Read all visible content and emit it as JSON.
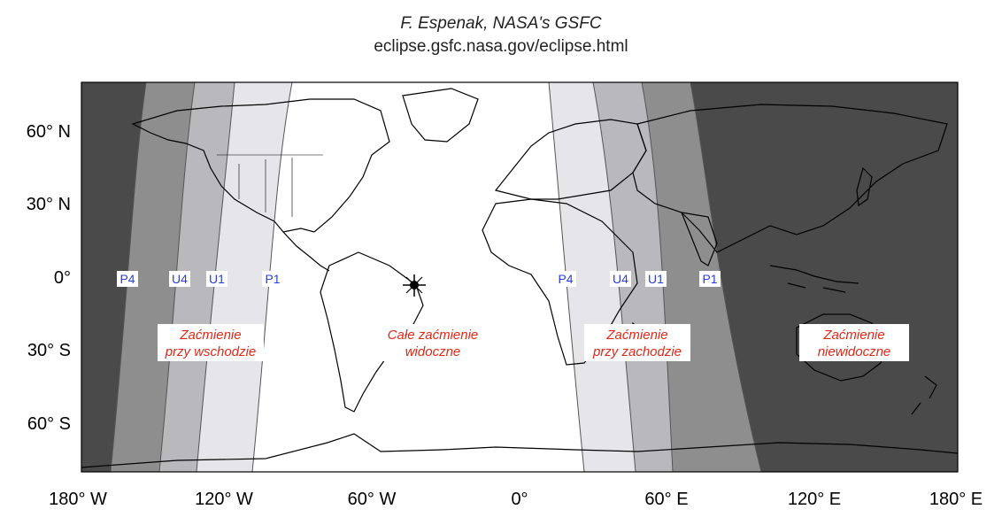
{
  "credit": {
    "author": "F. Espenak, NASA's GSFC",
    "url": "eclipse.gsfc.nasa.gov/eclipse.html"
  },
  "axes": {
    "x_ticks": [
      "180° W",
      "120° W",
      "60° W",
      "0°",
      "60° E",
      "120° E",
      "180° E"
    ],
    "y_ticks": [
      "60° N",
      "30° N",
      "0°",
      "30° S",
      "60° S"
    ]
  },
  "contacts_west": [
    "P4",
    "U4",
    "U1",
    "P1"
  ],
  "contacts_east": [
    "P4",
    "U4",
    "U1",
    "P1"
  ],
  "regions": {
    "rise": [
      "Zaćmienie",
      "przy wschodzie"
    ],
    "full": [
      "Całe zaćmienie",
      "widoczne"
    ],
    "set": [
      "Zaćmienie",
      "przy zachodzie"
    ],
    "none": [
      "Zaćmienie",
      "niewidoczne"
    ]
  },
  "colors": {
    "not_visible": "#4a4a4a",
    "penumbral_dark": "#8e8e8e",
    "penumbral_light": "#e6e6ea",
    "partial": "#b9b9bd",
    "full_visibility": "#ffffff",
    "label_blue": "#2a3fd8",
    "label_red": "#e02818"
  },
  "map_extent": {
    "lon": [
      -180,
      180
    ],
    "lat": [
      -80,
      80
    ]
  }
}
